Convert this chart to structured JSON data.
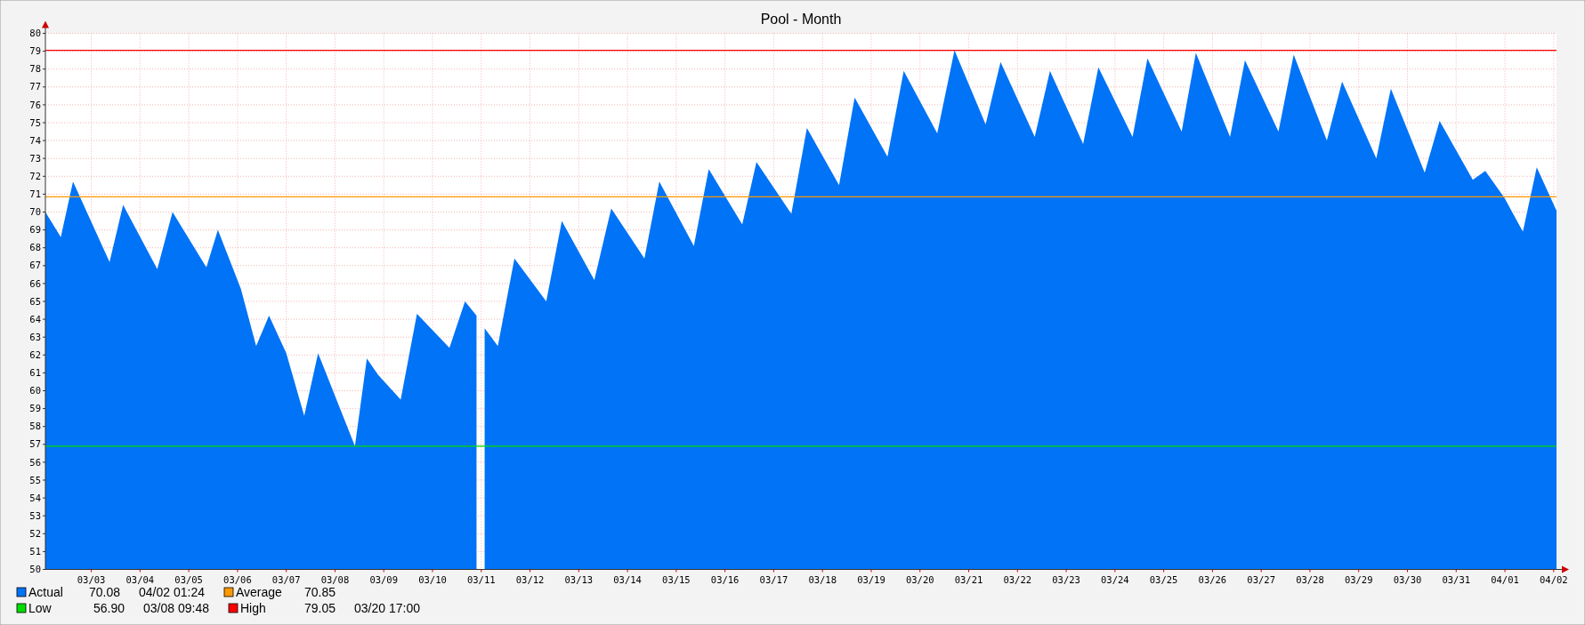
{
  "chart_data": {
    "type": "area",
    "title": "Pool - Month",
    "x": [
      "--03-02T01:24",
      "--03-02T09:00",
      "--03-02T15:00",
      "--03-03T09:00",
      "--03-03T15:40",
      "--03-04T08:30",
      "--03-04T16:00",
      "--03-05T08:40",
      "--03-05T14:20",
      "--03-06T01:40",
      "--03-06T09:10",
      "--03-06T15:30",
      "--03-07T00:00",
      "--03-07T08:50",
      "--03-07T15:40",
      "--03-08T09:48",
      "--03-08T15:40",
      "--03-08T21:10",
      "--03-09T08:20",
      "--03-09T16:20",
      "--03-10T05:50",
      "--03-10T08:20",
      "--03-10T16:00",
      "--03-10T21:40",
      "--03-11T00:00",
      "--03-11T01:40",
      "--03-11T08:10",
      "--03-11T16:20",
      "--03-12T08:00",
      "--03-12T15:40",
      "--03-13T07:40",
      "--03-13T16:00",
      "--03-14T08:20",
      "--03-14T15:40",
      "--03-15T08:40",
      "--03-15T16:00",
      "--03-16T08:30",
      "--03-16T15:30",
      "--03-17T08:40",
      "--03-17T16:20",
      "--03-18T08:10",
      "--03-18T15:50",
      "--03-19T08:00",
      "--03-19T16:00",
      "--03-20T08:30",
      "--03-20T17:00",
      "--03-21T08:20",
      "--03-21T15:40",
      "--03-22T08:30",
      "--03-22T16:00",
      "--03-23T08:20",
      "--03-23T15:50",
      "--03-24T08:40",
      "--03-24T16:00",
      "--03-25T08:50",
      "--03-25T15:50",
      "--03-26T08:40",
      "--03-26T16:00",
      "--03-27T08:30",
      "--03-27T16:00",
      "--03-28T08:20",
      "--03-28T15:50",
      "--03-29T08:40",
      "--03-29T15:50",
      "--03-30T08:30",
      "--03-30T15:50",
      "--03-31T08:10",
      "--03-31T14:20",
      "--03-31T23:45",
      "--04-01T08:50",
      "--04-01T15:40",
      "--04-02T01:24"
    ],
    "series": [
      {
        "name": "Actual",
        "color": "#0073f7",
        "values": [
          70.0,
          68.6,
          71.7,
          67.2,
          70.4,
          66.8,
          70.0,
          66.9,
          69.0,
          65.7,
          62.5,
          64.2,
          62.1,
          58.6,
          62.1,
          56.9,
          61.8,
          60.9,
          59.5,
          64.3,
          62.7,
          62.4,
          65.0,
          64.2,
          null,
          63.5,
          62.5,
          67.4,
          65.0,
          69.5,
          66.2,
          70.2,
          67.4,
          71.7,
          68.1,
          72.4,
          69.3,
          72.8,
          69.9,
          74.7,
          71.5,
          76.4,
          73.1,
          77.9,
          74.4,
          79.05,
          74.9,
          78.4,
          74.2,
          77.9,
          73.8,
          78.1,
          74.2,
          78.6,
          74.5,
          78.9,
          74.2,
          78.5,
          74.5,
          78.8,
          74.0,
          77.3,
          73.0,
          76.9,
          72.2,
          75.1,
          71.8,
          72.3,
          70.8,
          68.9,
          72.5,
          70.08
        ]
      }
    ],
    "xlim": [
      "--03-02T01:24",
      "--04-02T01:24"
    ],
    "xticks": [
      {
        "value": "--03-03T00:00",
        "label": "03/03"
      },
      {
        "value": "--03-04T00:00",
        "label": "03/04"
      },
      {
        "value": "--03-05T00:00",
        "label": "03/05"
      },
      {
        "value": "--03-06T00:00",
        "label": "03/06"
      },
      {
        "value": "--03-07T00:00",
        "label": "03/07"
      },
      {
        "value": "--03-08T00:00",
        "label": "03/08"
      },
      {
        "value": "--03-09T00:00",
        "label": "03/09"
      },
      {
        "value": "--03-10T00:00",
        "label": "03/10"
      },
      {
        "value": "--03-11T00:00",
        "label": "03/11"
      },
      {
        "value": "--03-12T00:00",
        "label": "03/12"
      },
      {
        "value": "--03-13T00:00",
        "label": "03/13"
      },
      {
        "value": "--03-14T00:00",
        "label": "03/14"
      },
      {
        "value": "--03-15T00:00",
        "label": "03/15"
      },
      {
        "value": "--03-16T00:00",
        "label": "03/16"
      },
      {
        "value": "--03-17T00:00",
        "label": "03/17"
      },
      {
        "value": "--03-18T00:00",
        "label": "03/18"
      },
      {
        "value": "--03-19T00:00",
        "label": "03/19"
      },
      {
        "value": "--03-20T00:00",
        "label": "03/20"
      },
      {
        "value": "--03-21T00:00",
        "label": "03/21"
      },
      {
        "value": "--03-22T00:00",
        "label": "03/22"
      },
      {
        "value": "--03-23T00:00",
        "label": "03/23"
      },
      {
        "value": "--03-24T00:00",
        "label": "03/24"
      },
      {
        "value": "--03-25T00:00",
        "label": "03/25"
      },
      {
        "value": "--03-26T00:00",
        "label": "03/26"
      },
      {
        "value": "--03-27T00:00",
        "label": "03/27"
      },
      {
        "value": "--03-28T00:00",
        "label": "03/28"
      },
      {
        "value": "--03-29T00:00",
        "label": "03/29"
      },
      {
        "value": "--03-30T00:00",
        "label": "03/30"
      },
      {
        "value": "--03-31T00:00",
        "label": "03/31"
      },
      {
        "value": "--04-01T00:00",
        "label": "04/01"
      },
      {
        "value": "--04-02T00:00",
        "label": "04/02"
      }
    ],
    "ylim": [
      50,
      80
    ],
    "yticks": [
      50,
      51,
      52,
      53,
      54,
      55,
      56,
      57,
      58,
      59,
      60,
      61,
      62,
      63,
      64,
      65,
      66,
      67,
      68,
      69,
      70,
      71,
      72,
      73,
      74,
      75,
      76,
      77,
      78,
      79,
      80
    ],
    "ref_lines": [
      {
        "axis": "y",
        "value": 70.85,
        "label": "Average",
        "color": "#ff9900"
      },
      {
        "axis": "y",
        "value": 56.9,
        "label": "Low",
        "color": "#00dd00"
      },
      {
        "axis": "y",
        "value": 79.05,
        "label": "High",
        "color": "#ff0000"
      }
    ],
    "annotations": [
      "70.08",
      "04/02 01:24",
      "70.85",
      "56.90",
      "03/08 09:48",
      "79.05",
      "03/20 17:00"
    ],
    "grid": true,
    "legend": "bottom"
  }
}
